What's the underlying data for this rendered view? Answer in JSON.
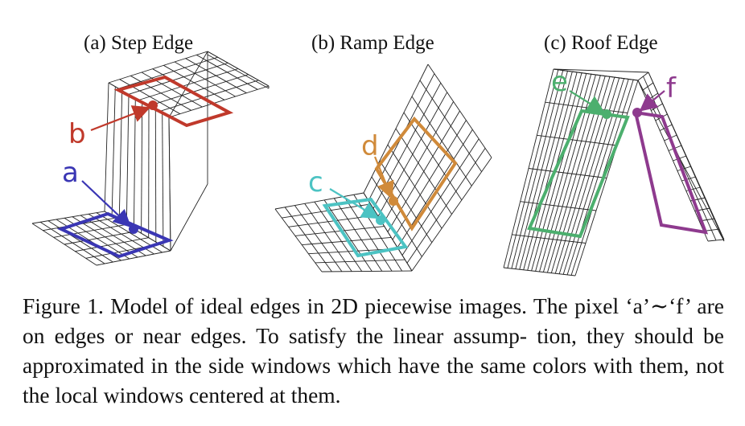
{
  "figure": {
    "subfigures": [
      {
        "id": "a",
        "title": "(a)  Step Edge"
      },
      {
        "id": "b",
        "title": "(b)  Ramp Edge"
      },
      {
        "id": "c",
        "title": "(c)  Roof Edge"
      }
    ],
    "pixel_labels": [
      {
        "id": "a",
        "text": "a",
        "color": "#3a36b4"
      },
      {
        "id": "b",
        "text": "b",
        "color": "#c0392b"
      },
      {
        "id": "c",
        "text": "c",
        "color": "#4cc3c3"
      },
      {
        "id": "d",
        "text": "d",
        "color": "#d08a3a"
      },
      {
        "id": "e",
        "text": "e",
        "color": "#4caf6e"
      },
      {
        "id": "f",
        "text": "f",
        "color": "#8e3a8e"
      }
    ],
    "caption": {
      "line1": "Figure 1. Model of ideal edges in 2D piecewise images. The pixel",
      "line2": "‘a’∼‘f’ are on edges or near edges. To satisfy the linear assump-",
      "line3": "tion, they should be approximated in the side windows which have",
      "line4": "the same colors with them, not the local windows centered at them."
    }
  }
}
